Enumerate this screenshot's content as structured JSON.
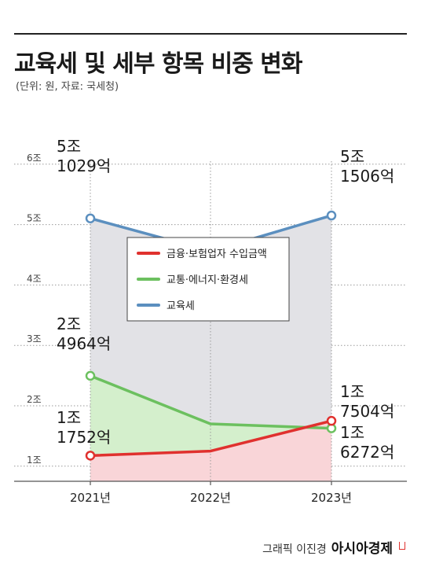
{
  "header": {
    "title": "교육세 및 세부 항목 비중 변화",
    "subtitle": "(단위: 원, 자료: 국세청)"
  },
  "chart_data": {
    "type": "line",
    "title": "교육세 및 세부 항목 비중 변화",
    "unit_note": "(단위: 원, 자료: 국세청)",
    "categories": [
      "2021년",
      "2022년",
      "2023년"
    ],
    "y_ticks": [
      "1조",
      "2조",
      "3조",
      "4조",
      "5조",
      "6조"
    ],
    "y_tick_values": [
      1,
      2,
      3,
      4,
      5,
      6
    ],
    "ylim": [
      0.75,
      6
    ],
    "y_unit": "조",
    "grid": true,
    "legend_position": "center",
    "series": [
      {
        "name": "금융·보험업자 수입금액",
        "color": "#e0312e",
        "fill": "#f9d5d8",
        "values": [
          1.1752,
          1.25,
          1.7504
        ]
      },
      {
        "name": "교통·에너지·환경세",
        "color": "#6cc05f",
        "fill": "#d4efcc",
        "values": [
          2.4964,
          1.7,
          1.6272
        ]
      },
      {
        "name": "교육세",
        "color": "#5b8fbf",
        "fill": "#e2e2e6",
        "values": [
          5.1029,
          4.56,
          5.1506
        ]
      }
    ],
    "annotations": [
      {
        "series": 2,
        "point": 0,
        "line1": "5조",
        "line2": "1029억"
      },
      {
        "series": 2,
        "point": 2,
        "line1": "5조",
        "line2": "1506억"
      },
      {
        "series": 1,
        "point": 0,
        "line1": "2조",
        "line2": "4964억"
      },
      {
        "series": 0,
        "point": 0,
        "line1": "1조",
        "line2": "1752억"
      },
      {
        "series": 0,
        "point": 2,
        "line1": "1조",
        "line2": "7504억"
      },
      {
        "series": 1,
        "point": 2,
        "line1": "1조",
        "line2": "6272억"
      }
    ]
  },
  "footer": {
    "credit": "그래픽 이진경",
    "brand": "아시아경제"
  }
}
